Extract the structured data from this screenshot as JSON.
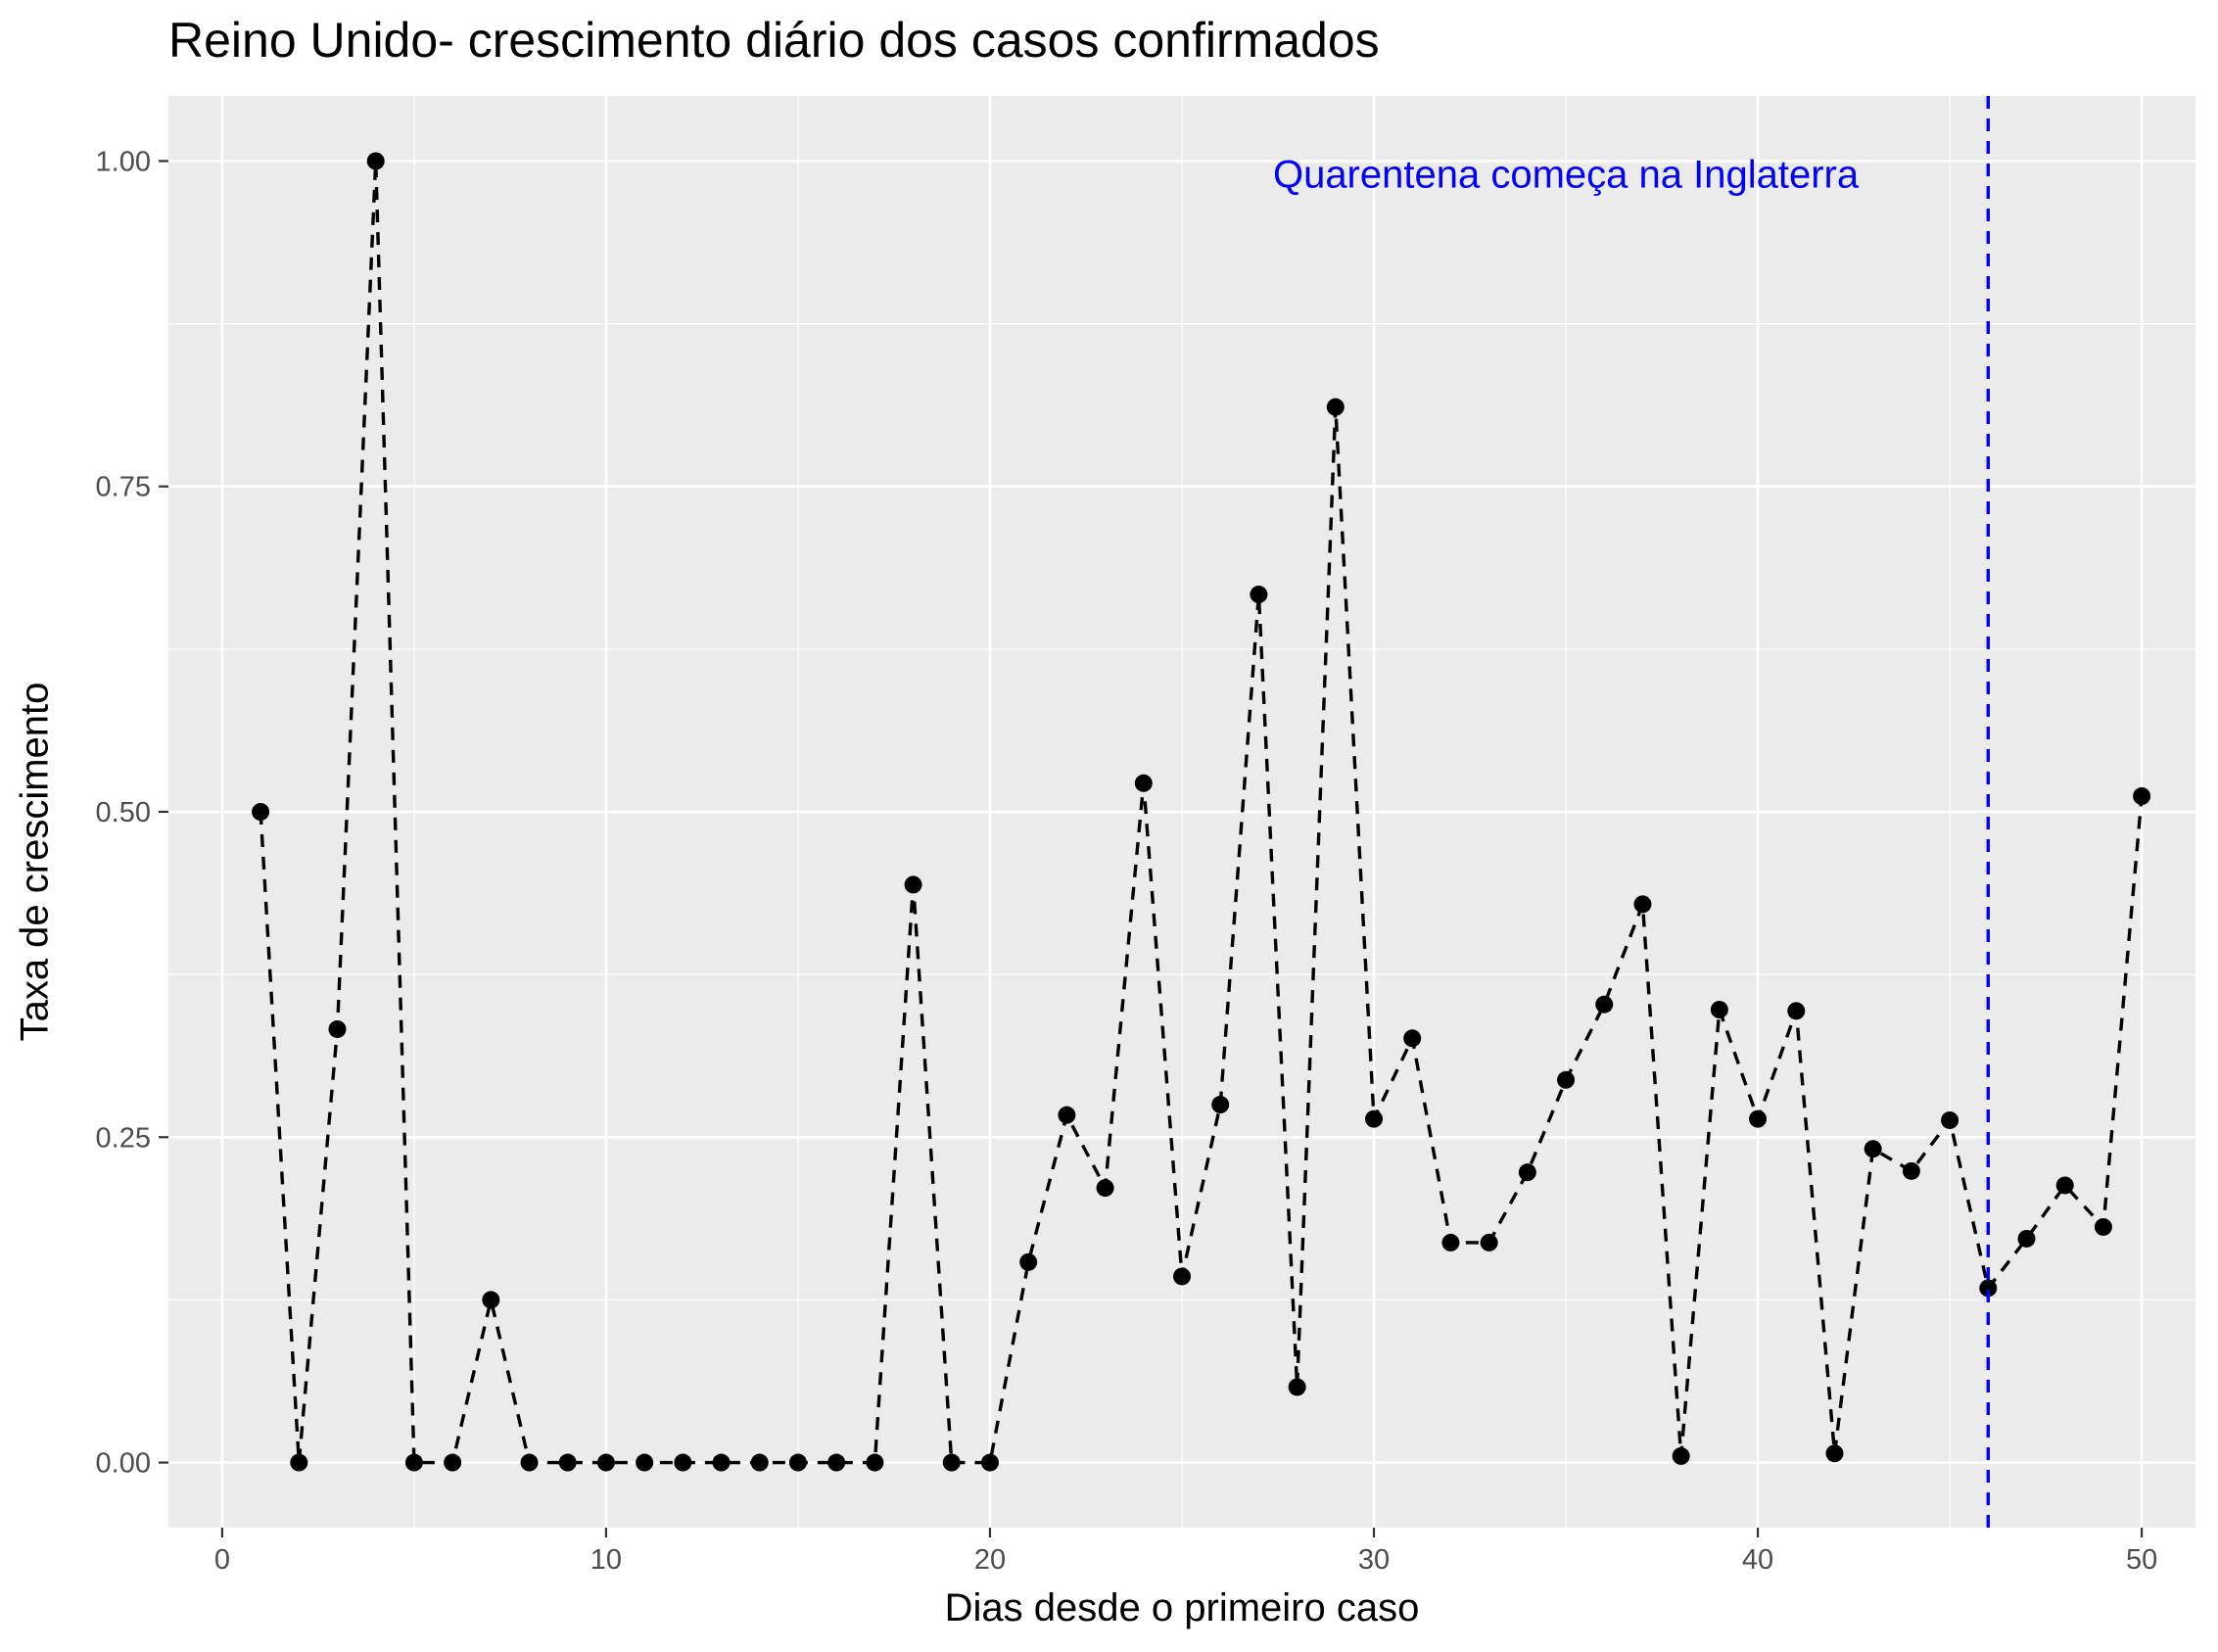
{
  "chart_data": {
    "type": "line",
    "title": "Reino Unido- crescimento diário dos casos confirmados",
    "xlabel": "Dias desde o primeiro caso",
    "ylabel": "Taxa de crescimento",
    "xlim": [
      -1.4,
      51.4
    ],
    "ylim": [
      -0.05,
      1.05
    ],
    "x_ticks": [
      0,
      10,
      20,
      30,
      40,
      50
    ],
    "x_tick_labels": [
      "0",
      "10",
      "20",
      "30",
      "40",
      "50"
    ],
    "y_ticks": [
      0,
      0.25,
      0.5,
      0.75,
      1.0
    ],
    "y_tick_labels": [
      "0.00",
      "0.25",
      "0.50",
      "0.75",
      "1.00"
    ],
    "grid": true,
    "line_style": "dashed",
    "colors": {
      "panel": "#EBEBEB",
      "grid": "#FFFFFF",
      "series": "#000000",
      "annotation": "#0000FF",
      "axis_text": "#4D4D4D"
    },
    "series": [
      {
        "x": [
          1,
          2,
          3,
          4,
          5,
          6,
          7,
          8,
          9,
          10,
          11,
          12,
          13,
          14,
          15,
          16,
          17,
          18,
          19,
          20,
          21,
          22,
          23,
          24,
          25,
          26,
          27,
          28,
          29,
          30,
          31,
          32,
          33,
          34,
          35,
          36,
          37,
          38,
          39,
          40,
          41,
          42,
          43,
          44,
          45,
          46,
          47,
          48,
          49,
          50
        ],
        "values": [
          0.5,
          0,
          0.333,
          1.0,
          0,
          0,
          0.125,
          0,
          0,
          0,
          0,
          0,
          0,
          0,
          0,
          0,
          0,
          0.444,
          0,
          0,
          0.154,
          0.267,
          0.211,
          0.522,
          0.143,
          0.275,
          0.667,
          0.058,
          0.811,
          0.264,
          0.326,
          0.169,
          0.169,
          0.223,
          0.294,
          0.352,
          0.429,
          0.005,
          0.348,
          0.264,
          0.347,
          0.007,
          0.241,
          0.224,
          0.263,
          0.134,
          0.172,
          0.213,
          0.181,
          0.512
        ]
      }
    ],
    "vline": {
      "x": 46,
      "style": "dashed",
      "color": "#0000FF"
    },
    "annotations": [
      {
        "text": "Quarentena começa na Inglaterra",
        "x": 35,
        "y": 0.99
      }
    ]
  }
}
